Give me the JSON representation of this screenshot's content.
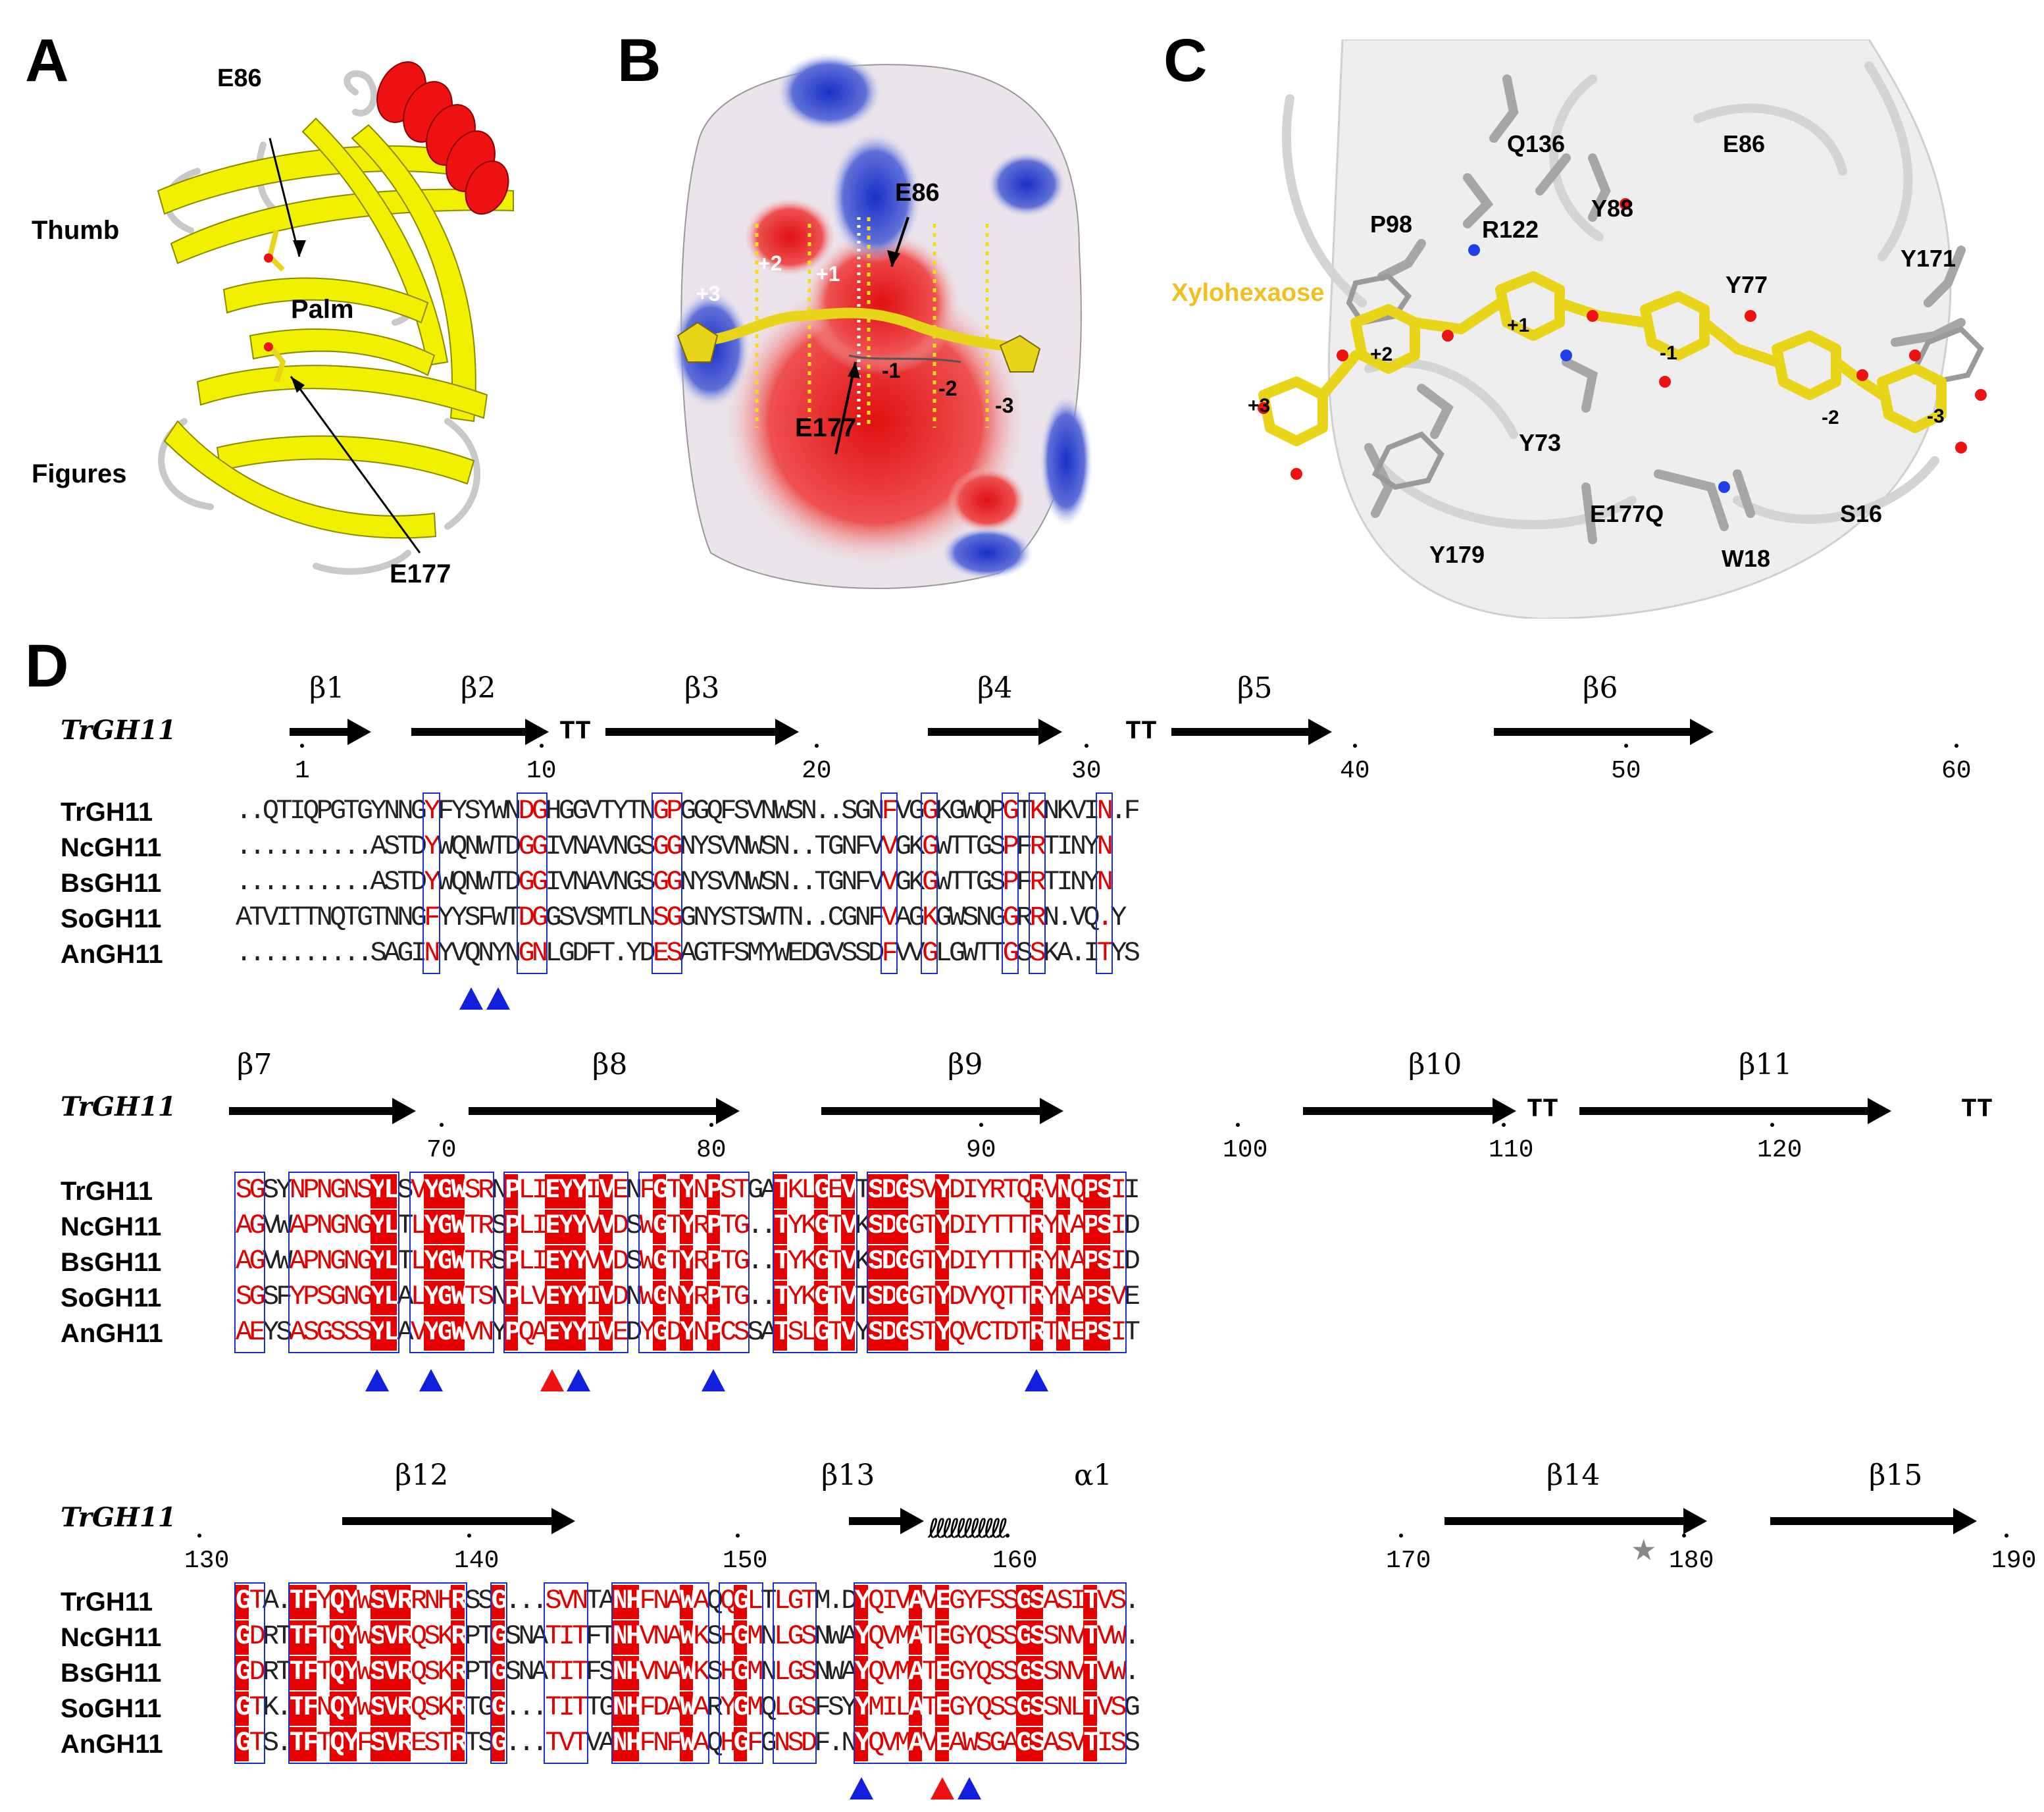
{
  "panels": [
    "A",
    "B",
    "C",
    "D"
  ],
  "colors": {
    "helix": "#ee1111",
    "sheet": "#f0f000",
    "loop": "#dddddd",
    "ligand": "#e8d51a",
    "conserved_bg": "#e60000",
    "similar_fg": "#e00000",
    "box": "#1a2fd0",
    "arrow_blue": "#1020dd",
    "arrow_red": "#ee1111",
    "star": "#888888"
  },
  "panelA": {
    "labels": {
      "e86": "E86",
      "thumb": "Thumb",
      "palm": "Palm",
      "figures": "Figures",
      "e177": "E177"
    }
  },
  "panelB": {
    "labels": {
      "p3": "+3",
      "p2": "+2",
      "p1": "+1",
      "m1": "-1",
      "m2": "-2",
      "m3": "-3",
      "e86": "E86",
      "e177": "E177"
    }
  },
  "panelC": {
    "labels": {
      "q136": "Q136",
      "e86": "E86",
      "p98": "P98",
      "r122": "R122",
      "y88": "Y88",
      "y77": "Y77",
      "y171": "Y171",
      "xylo": "Xylohexaose",
      "p1": "+1",
      "m1": "-1",
      "p2": "+2",
      "p3": "+3",
      "m2": "-2",
      "m3": "-3",
      "y73": "Y73",
      "e177q": "E177Q",
      "s16": "S16",
      "y179": "Y179",
      "w18": "W18"
    }
  },
  "panelD": {
    "ss_name": "TrGH11",
    "block1": {
      "ss": [
        "β1",
        "β2",
        "β3",
        "β4",
        "β5",
        "β6",
        "TT",
        "TT"
      ],
      "nums": [
        "1",
        "10",
        "20",
        "30",
        "40",
        "50",
        "60"
      ],
      "rows": [
        {
          "name": "TrGH11",
          "seq": "..QTIQPGTGYNNGYFYSYWNDGHGGVTYTNGPGGQFSVNWSN..SGNFVGGKGWQPGTKNKVIN.F"
        },
        {
          "name": "NcGH11",
          "seq": "..........ASTDYWQNWTDGGIVNAVNGSGGNYSVNWSN..TGNFVVGKGWTTGSPFRTINYN"
        },
        {
          "name": "BsGH11",
          "seq": "..........ASTDYWQNWTDGGIVNAVNGSGGNYSVNWSN..TGNFVVGKGWTTGSPFRTINYN"
        },
        {
          "name": "SoGH11",
          "seq": "ATVITTNQTGTNNGFYYSFWTDGGSVSMTLNSGGNYSTSWTN..CGNFVAGKGWSNGGRRN.VQ.Y"
        },
        {
          "name": "AnGH11",
          "seq": "..........SAGINYVQNYNGNLGDFT.YDESAGTFSMYWEDGVSSDFVVGLGWTTGSSKA.ITYS"
        }
      ]
    },
    "block2": {
      "ss": [
        "β7",
        "β8",
        "β9",
        "β10",
        "β11",
        "TT",
        "TT"
      ],
      "nums": [
        "70",
        "80",
        "90",
        "100",
        "110",
        "120"
      ],
      "rows": [
        {
          "name": "TrGH11",
          "seq": "SGSYNPNGNSYLSVYGWSRNPLIEYYIVENFGTYNPSTGATKLGEVTSDGSVYDIYRTQRVNQPSII"
        },
        {
          "name": "NcGH11",
          "seq": "AGVWAPNGNGYLTLYGWTRSPLIEYYVVDSWGTYRPTG..TYKGTVKSDGGTYDIYTTTRYNAPSID"
        },
        {
          "name": "BsGH11",
          "seq": "AGVWAPNGNGYLTLYGWTRSPLIEYYVVDSWGTYRPTG..TYKGTVKSDGGTYDIYTTTRYNAPSID"
        },
        {
          "name": "SoGH11",
          "seq": "SGSFYPSGNGYLALYGWTSNPLVEYYIVDNWGNYRPTG..TYKGTVTSDGGTYDVYQTTRYNAPSVE"
        },
        {
          "name": "AnGH11",
          "seq": "AEYSASGSSSYLAVYGWVNYPQAEYYIVEDYGDYNPCSSATSLGTVYSDGSTYQVCTDTRTNEPSIT"
        }
      ]
    },
    "block3": {
      "ss": [
        "β12",
        "β13",
        "α1",
        "β14",
        "β15"
      ],
      "nums": [
        "130",
        "140",
        "150",
        "160",
        "170",
        "180",
        "190"
      ],
      "star": "★",
      "rows": [
        {
          "name": "TrGH11",
          "seq": "GTA.TFYQYWSVRRNHRSSG...SVNTANHFNAWAQQGLTLGTM.DYQIVAVEGYFSSGSASITVS."
        },
        {
          "name": "NcGH11",
          "seq": "GDRTTFTQYWSVRQSKRPTGSNATITFTNHVNAWKSHGMNLGSNWAYQVMATEGYQSSGSSNVTVW."
        },
        {
          "name": "BsGH11",
          "seq": "GDRTTFTQYWSVRQSKRPTGSNATITFSNHVNAWKSHGMNLGSNWAYQVMATEGYQSSGSSNVTVW."
        },
        {
          "name": "SoGH11",
          "seq": "GTK.TFNQYWSVRQSKRTGG...TITTGNHFDAWARYGMQLGSFSYYMILATEGYQSSGSSNLTVSG"
        },
        {
          "name": "AnGH11",
          "seq": "GTS.TFTQYFSVRESTRTSG...TVTVANHFNFWAQHGFGNSDF.NYQVMAVEAWSGAGSASVTISS"
        }
      ]
    }
  }
}
